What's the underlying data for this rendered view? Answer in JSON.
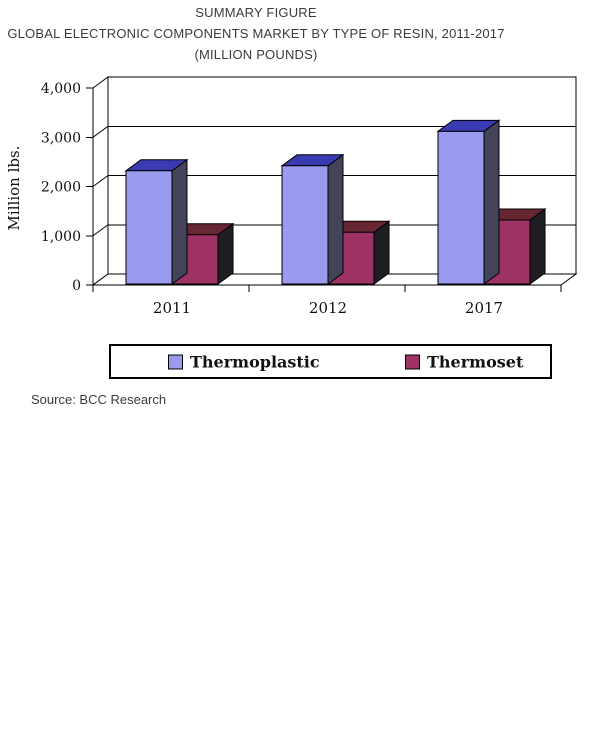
{
  "chart_data": {
    "type": "bar",
    "style": "3d-column",
    "title_lines": [
      "SUMMARY FIGURE",
      "GLOBAL ELECTRONIC COMPONENTS MARKET BY TYPE OF RESIN, 2011-2017",
      "(MILLION POUNDS)"
    ],
    "categories": [
      "2011",
      "2012",
      "2017"
    ],
    "series": [
      {
        "name": "Thermoplastic",
        "values": [
          2300,
          2400,
          3100
        ],
        "color": "#9a9aef",
        "top_color": "#3a3ab2",
        "side_color": "#43435a"
      },
      {
        "name": "Thermoset",
        "values": [
          1000,
          1050,
          1300
        ],
        "color": "#9d3365",
        "top_color": "#662733",
        "side_color": "#1e1e22"
      }
    ],
    "ylabel": "Million lbs.",
    "xlabel": "",
    "ylim": [
      0,
      4000
    ],
    "ytick_step": 1000,
    "ytick_labels": [
      "0",
      "1,000",
      "2,000",
      "3,000",
      "4,000"
    ],
    "grid": true,
    "legend_position": "bottom-box"
  },
  "source": {
    "label": "Source: BCC Research"
  }
}
